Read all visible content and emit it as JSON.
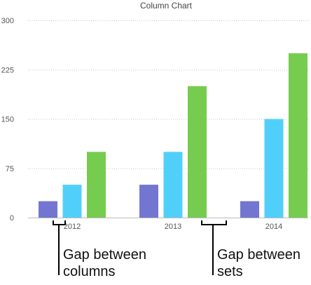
{
  "chart_data": {
    "type": "bar",
    "title": "Column Chart",
    "categories": [
      "2012",
      "2013",
      "2014"
    ],
    "series": [
      {
        "values": [
          25,
          50,
          25
        ],
        "color": "#7276d0"
      },
      {
        "values": [
          50,
          100,
          150
        ],
        "color": "#51cffb"
      },
      {
        "values": [
          100,
          200,
          250
        ],
        "color": "#76cc4f"
      }
    ],
    "ylim": [
      0,
      300
    ],
    "yticks": [
      0,
      75,
      150,
      225,
      300
    ],
    "grid": true,
    "legend": "none"
  },
  "annotations": {
    "gap_columns": [
      "Gap between",
      "columns"
    ],
    "gap_sets": [
      "Gap between",
      "sets"
    ]
  }
}
